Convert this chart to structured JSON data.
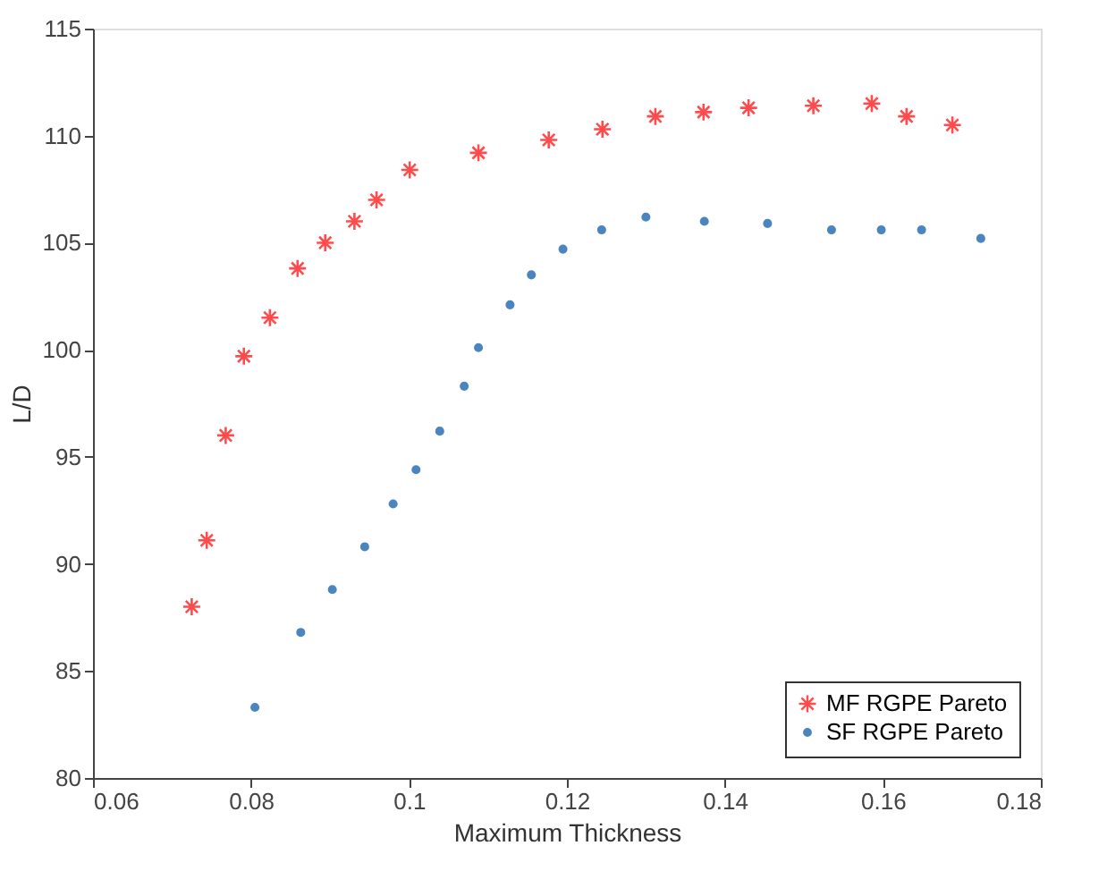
{
  "chart_data": {
    "type": "scatter",
    "xlabel": "Maximum Thickness",
    "ylabel": "L/D",
    "xlim": [
      0.06,
      0.18
    ],
    "xticks": [
      0.06,
      0.08,
      0.1,
      0.12,
      0.14,
      0.16,
      0.18
    ],
    "ylim": [
      80,
      115
    ],
    "yticks": [
      80,
      85,
      90,
      95,
      100,
      105,
      110,
      115
    ],
    "grid": false,
    "legend": "bottom right",
    "series": [
      {
        "name": "MF RGPE Pareto",
        "color": "#ff0000",
        "marker": "cross",
        "x": [
          0.0725,
          0.0744,
          0.0768,
          0.0791,
          0.0824,
          0.0859,
          0.0894,
          0.0931,
          0.0959,
          0.1001,
          0.1088,
          0.1177,
          0.1245,
          0.1312,
          0.1373,
          0.143,
          0.1512,
          0.1586,
          0.163,
          0.1688
        ],
        "values": [
          88.0,
          91.1,
          96.0,
          99.7,
          101.5,
          103.8,
          105.0,
          106.0,
          107.0,
          108.4,
          109.2,
          109.8,
          110.3,
          110.9,
          111.1,
          111.3,
          111.4,
          111.5,
          110.9,
          110.5
        ]
      },
      {
        "name": "SF RGPE Pareto",
        "color": "#0052a5",
        "marker": "circle",
        "x": [
          0.0805,
          0.0863,
          0.0903,
          0.0944,
          0.098,
          0.1009,
          0.1039,
          0.107,
          0.1088,
          0.1128,
          0.1155,
          0.1195,
          0.1244,
          0.13,
          0.1374,
          0.1454,
          0.1535,
          0.1598,
          0.1649,
          0.1724
        ],
        "values": [
          83.3,
          86.8,
          88.8,
          90.8,
          92.8,
          94.4,
          96.2,
          98.3,
          100.1,
          102.1,
          103.5,
          104.7,
          105.6,
          106.2,
          106.0,
          105.9,
          105.6,
          105.6,
          105.6,
          105.2
        ]
      }
    ]
  }
}
